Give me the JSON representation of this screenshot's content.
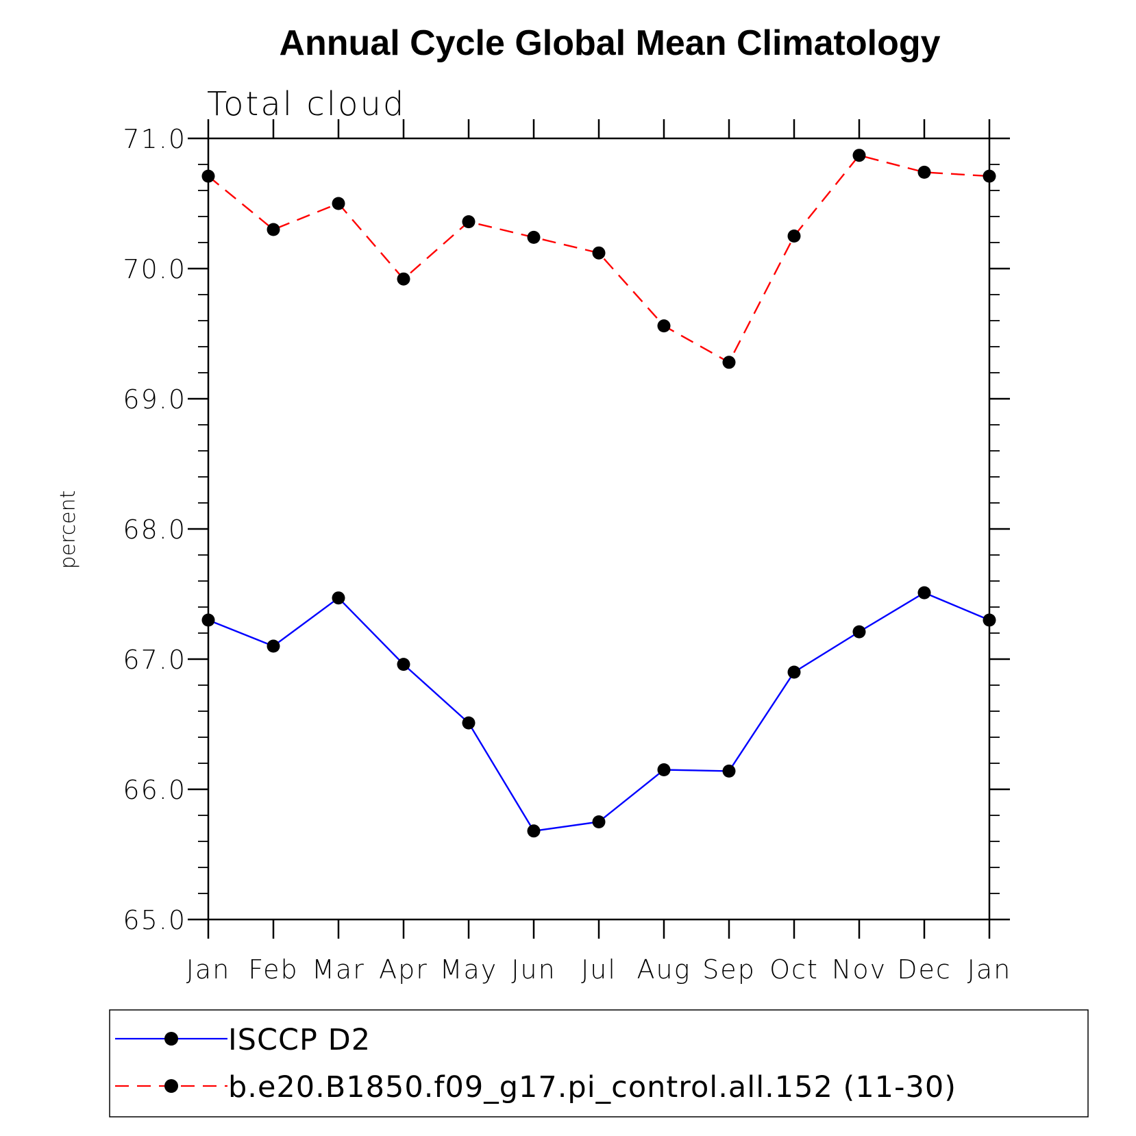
{
  "chart_data": {
    "type": "line",
    "title": "Annual Cycle Global Mean Climatology",
    "subtitle": "Total cloud",
    "xlabel": "",
    "ylabel": "percent",
    "categories": [
      "Jan",
      "Feb",
      "Mar",
      "Apr",
      "May",
      "Jun",
      "Jul",
      "Aug",
      "Sep",
      "Oct",
      "Nov",
      "Dec",
      "Jan"
    ],
    "ylim": [
      65.0,
      71.0
    ],
    "yticks": [
      "65.0",
      "66.0",
      "67.0",
      "68.0",
      "69.0",
      "70.0",
      "71.0"
    ],
    "yminor_step": 0.2,
    "legend_position": "bottom",
    "grid": false,
    "series": [
      {
        "name": "ISCCP D2",
        "color": "#0000ff",
        "line_style": "solid",
        "marker": "filled-circle",
        "values": [
          67.3,
          67.1,
          67.47,
          66.96,
          66.51,
          65.68,
          65.75,
          66.15,
          66.14,
          66.9,
          67.21,
          67.51,
          67.3
        ]
      },
      {
        "name": "b.e20.B1850.f09_g17.pi_control.all.152 (11-30)",
        "color": "#ff0000",
        "line_style": "dashed",
        "marker": "filled-circle",
        "values": [
          70.71,
          70.3,
          70.5,
          69.92,
          70.36,
          70.24,
          70.12,
          69.56,
          69.28,
          70.25,
          70.87,
          70.74,
          70.71
        ]
      }
    ]
  }
}
